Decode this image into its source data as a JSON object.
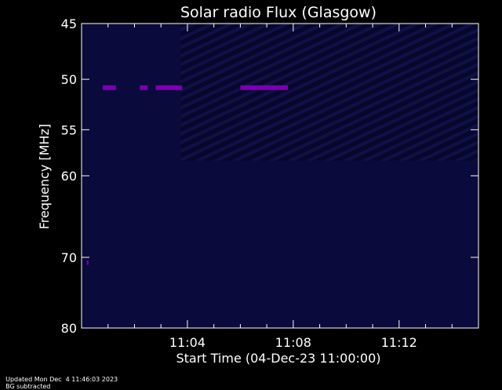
{
  "chart_data": {
    "type": "heatmap",
    "title": "Solar radio Flux (Glasgow)",
    "xlabel": "Start Time (04-Dec-23 11:00:00)",
    "ylabel": "Frequency [MHz]",
    "x_unit": "minutes after 11:00",
    "xlim": [
      0,
      15
    ],
    "x_ticks": [
      {
        "value": 4,
        "label": "11:04"
      },
      {
        "value": 8,
        "label": "11:08"
      },
      {
        "value": 12,
        "label": "11:12"
      }
    ],
    "ylim": [
      80,
      45
    ],
    "y_scale": "log",
    "y_ticks": [
      45,
      50,
      55,
      60,
      70,
      80
    ],
    "background_color": "#000000",
    "band_color": "#0a0a3c",
    "signal_color": "#7a00b0",
    "bursts": [
      {
        "x_start": 0.8,
        "x_end": 1.3,
        "freq": 50.8
      },
      {
        "x_start": 2.2,
        "x_end": 2.5,
        "freq": 50.8
      },
      {
        "x_start": 2.8,
        "x_end": 3.8,
        "freq": 50.8
      },
      {
        "x_start": 6.0,
        "x_end": 7.8,
        "freq": 50.8
      },
      {
        "x_start": 0.2,
        "x_end": 0.25,
        "freq": 70.7
      }
    ]
  },
  "footer": {
    "updated": "Updated Mon Dec  4 11:46:03 2023",
    "note": "BG subtracted"
  }
}
